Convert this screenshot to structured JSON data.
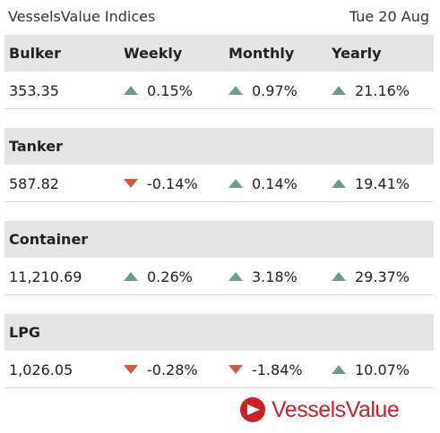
{
  "header": {
    "title": "VesselsValue Indices",
    "date": "Tue 20 Aug"
  },
  "columns": {
    "weekly": "Weekly",
    "monthly": "Monthly",
    "yearly": "Yearly"
  },
  "indices": [
    {
      "name": "Bulker",
      "value": "353.35",
      "weekly": {
        "text": "0.15%",
        "direction": "up"
      },
      "monthly": {
        "text": "0.97%",
        "direction": "up"
      },
      "yearly": {
        "text": "21.16%",
        "direction": "up"
      }
    },
    {
      "name": "Tanker",
      "value": "587.82",
      "weekly": {
        "text": "-0.14%",
        "direction": "down"
      },
      "monthly": {
        "text": "0.14%",
        "direction": "up"
      },
      "yearly": {
        "text": "19.41%",
        "direction": "up"
      }
    },
    {
      "name": "Container",
      "value": "11,210.69",
      "weekly": {
        "text": "0.26%",
        "direction": "up"
      },
      "monthly": {
        "text": "3.18%",
        "direction": "up"
      },
      "yearly": {
        "text": "29.37%",
        "direction": "up"
      }
    },
    {
      "name": "LPG",
      "value": "1,026.05",
      "weekly": {
        "text": "-0.28%",
        "direction": "down"
      },
      "monthly": {
        "text": "-1.84%",
        "direction": "down"
      },
      "yearly": {
        "text": "10.07%",
        "direction": "up"
      }
    }
  ],
  "colors": {
    "up": "#6a9f87",
    "down": "#d35a41",
    "header_bg": "#e6e5e6",
    "brand": "#cc2027"
  },
  "icons": {
    "up": "triangle-up-icon",
    "down": "triangle-down-icon",
    "logo": "vesselsvalue-logo-icon"
  },
  "footer": {
    "logo_text": "VesselsValue"
  }
}
